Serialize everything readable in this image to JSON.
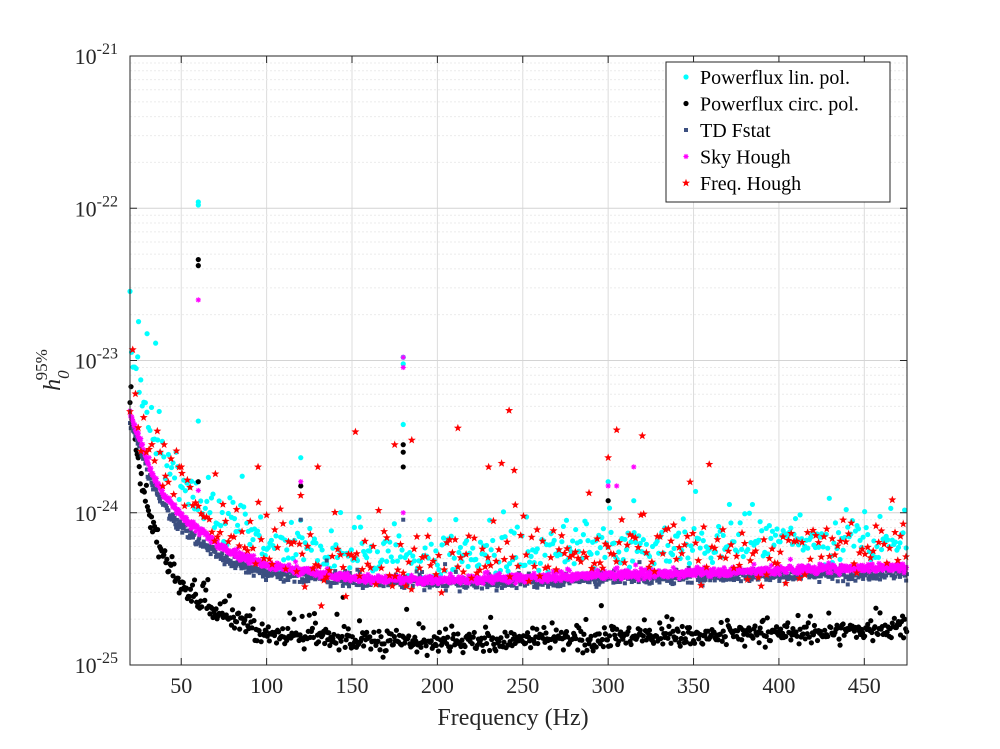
{
  "chart_data": {
    "type": "scatter",
    "title": "",
    "xlabel": "Frequency (Hz)",
    "ylabel_base": "h",
    "ylabel_sub": "0",
    "ylabel_sup": "95%",
    "xlim": [
      20,
      475
    ],
    "ylim": [
      1e-25,
      1e-21
    ],
    "yscale": "log",
    "grid": true,
    "legend_position": "top-right",
    "x_ticks": [
      50,
      100,
      150,
      200,
      250,
      300,
      350,
      400,
      450
    ],
    "y_ticks": [
      {
        "value": 1e-25,
        "base": "10",
        "exp": "-25"
      },
      {
        "value": 1e-24,
        "base": "10",
        "exp": "-24"
      },
      {
        "value": 1e-23,
        "base": "10",
        "exp": "-23"
      },
      {
        "value": 1e-22,
        "base": "10",
        "exp": "-22"
      },
      {
        "value": 1e-21,
        "base": "10",
        "exp": "-21"
      }
    ],
    "series": [
      {
        "name": "Powerflux lin. pol.",
        "color": "#00ffff",
        "marker": "dot",
        "baseline": [
          [
            20,
            1.3e-23
          ],
          [
            25,
            7e-24
          ],
          [
            30,
            4.2e-24
          ],
          [
            35,
            2.8e-24
          ],
          [
            40,
            2.1e-24
          ],
          [
            50,
            1.5e-24
          ],
          [
            60,
            1.2e-24
          ],
          [
            75,
            9e-25
          ],
          [
            100,
            6.5e-25
          ],
          [
            130,
            5.5e-25
          ],
          [
            170,
            5e-25
          ],
          [
            220,
            5e-25
          ],
          [
            300,
            5.5e-25
          ],
          [
            350,
            6e-25
          ],
          [
            400,
            6.3e-25
          ],
          [
            475,
            6.5e-25
          ]
        ],
        "outliers": [
          [
            60,
            1.1e-22
          ],
          [
            60,
            1.05e-22
          ],
          [
            180,
            1.05e-23
          ],
          [
            180,
            9.5e-24
          ],
          [
            180,
            3.8e-24
          ],
          [
            120,
            2.3e-24
          ],
          [
            300,
            1.6e-24
          ],
          [
            315,
            1.2e-24
          ],
          [
            25,
            1.8e-23
          ],
          [
            30,
            1.5e-23
          ],
          [
            35,
            1.3e-23
          ],
          [
            60,
            4e-24
          ]
        ]
      },
      {
        "name": "Powerflux circ. pol.",
        "color": "#000000",
        "marker": "dot",
        "baseline": [
          [
            20,
            5e-24
          ],
          [
            25,
            2.1e-24
          ],
          [
            30,
            1.1e-24
          ],
          [
            35,
            7e-25
          ],
          [
            40,
            5e-25
          ],
          [
            50,
            3.3e-25
          ],
          [
            60,
            2.6e-25
          ],
          [
            75,
            2.1e-25
          ],
          [
            100,
            1.6e-25
          ],
          [
            150,
            1.45e-25
          ],
          [
            200,
            1.4e-25
          ],
          [
            300,
            1.5e-25
          ],
          [
            400,
            1.6e-25
          ],
          [
            475,
            1.75e-25
          ]
        ],
        "outliers": [
          [
            60,
            4.6e-23
          ],
          [
            60,
            4.2e-23
          ],
          [
            180,
            2.8e-24
          ],
          [
            180,
            2.5e-24
          ],
          [
            180,
            2e-24
          ],
          [
            120,
            1.5e-24
          ],
          [
            300,
            1.2e-24
          ],
          [
            60,
            1.6e-24
          ]
        ]
      },
      {
        "name": "TD Fstat",
        "color": "#3c4f80",
        "marker": "square",
        "baseline": [
          [
            20,
            4e-24
          ],
          [
            25,
            2.8e-24
          ],
          [
            30,
            1.9e-24
          ],
          [
            35,
            1.4e-24
          ],
          [
            40,
            1.1e-24
          ],
          [
            50,
            8e-25
          ],
          [
            60,
            6.5e-25
          ],
          [
            75,
            5e-25
          ],
          [
            100,
            4e-25
          ],
          [
            150,
            3.6e-25
          ],
          [
            200,
            3.4e-25
          ],
          [
            300,
            3.7e-25
          ],
          [
            400,
            3.9e-25
          ],
          [
            475,
            4e-25
          ]
        ],
        "outliers": [
          [
            120,
            9e-25
          ],
          [
            180,
            9e-25
          ]
        ]
      },
      {
        "name": "Sky Hough",
        "color": "#ff00ff",
        "marker": "asterisk",
        "baseline": [
          [
            20,
            4.5e-24
          ],
          [
            25,
            3.2e-24
          ],
          [
            30,
            2.2e-24
          ],
          [
            35,
            1.6e-24
          ],
          [
            40,
            1.3e-24
          ],
          [
            50,
            9.5e-25
          ],
          [
            60,
            7.8e-25
          ],
          [
            75,
            5.8e-25
          ],
          [
            100,
            4.5e-25
          ],
          [
            150,
            3.7e-25
          ],
          [
            200,
            3.6e-25
          ],
          [
            300,
            3.9e-25
          ],
          [
            400,
            4.2e-25
          ],
          [
            475,
            4.4e-25
          ]
        ],
        "outliers": [
          [
            60,
            2.5e-23
          ],
          [
            180,
            1.05e-23
          ],
          [
            180,
            9e-24
          ],
          [
            120,
            1.6e-24
          ],
          [
            300,
            1.5e-24
          ],
          [
            305,
            1.5e-24
          ],
          [
            315,
            2e-24
          ],
          [
            60,
            1.4e-24
          ],
          [
            180,
            1e-24
          ]
        ]
      },
      {
        "name": "Freq. Hough",
        "color": "#ff0000",
        "marker": "star",
        "baseline": [
          [
            20,
            5.5e-24
          ],
          [
            30,
            3e-24
          ],
          [
            40,
            2e-24
          ],
          [
            50,
            1.3e-24
          ],
          [
            60,
            1e-24
          ],
          [
            75,
            7.5e-25
          ],
          [
            100,
            6e-25
          ],
          [
            150,
            5e-25
          ],
          [
            200,
            4.8e-25
          ],
          [
            300,
            5.5e-25
          ],
          [
            400,
            5.5e-25
          ],
          [
            475,
            5.5e-25
          ]
        ],
        "outliers": [
          [
            242,
            4.7e-24
          ],
          [
            212,
            3.6e-24
          ],
          [
            152,
            3.4e-24
          ],
          [
            305,
            3.5e-24
          ],
          [
            320,
            3.2e-24
          ],
          [
            185,
            3e-24
          ],
          [
            95,
            2e-24
          ],
          [
            230,
            2e-24
          ],
          [
            245,
            1.9e-24
          ],
          [
            130,
            2e-24
          ],
          [
            175,
            2.8e-24
          ],
          [
            300,
            2.3e-24
          ],
          [
            70,
            1.8e-24
          ],
          [
            50,
            2e-24
          ],
          [
            40,
            2.8e-24
          ],
          [
            120,
            1.3e-24
          ]
        ]
      }
    ]
  }
}
